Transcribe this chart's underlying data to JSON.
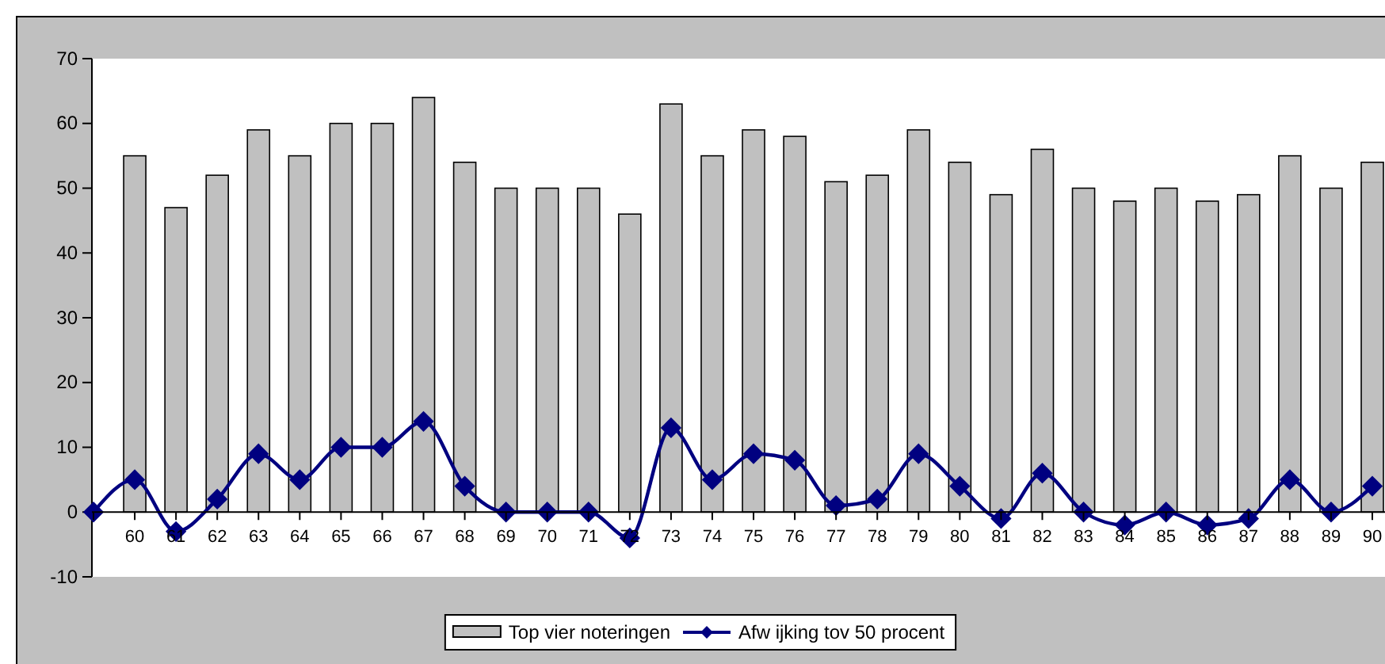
{
  "chart_data": {
    "type": "bar",
    "categories": [
      null,
      "60",
      "61",
      "62",
      "63",
      "64",
      "65",
      "66",
      "67",
      "68",
      "69",
      "70",
      "71",
      "72",
      "73",
      "74",
      "75",
      "76",
      "77",
      "78",
      "79",
      "80",
      "81",
      "82",
      "83",
      "84",
      "85",
      "86",
      "87",
      "88",
      "89",
      "90"
    ],
    "series": [
      {
        "name": "Top vier noteringen",
        "color": "#c0c0c0",
        "values": [
          null,
          55,
          47,
          52,
          59,
          55,
          60,
          60,
          64,
          54,
          50,
          50,
          50,
          46,
          63,
          55,
          59,
          58,
          51,
          52,
          59,
          54,
          49,
          56,
          50,
          48,
          50,
          48,
          49,
          55,
          50,
          54
        ]
      },
      {
        "name": "Afw ijking tov 50 procent",
        "type": "line",
        "color": "#000080",
        "marker": "diamond",
        "values": [
          0,
          5,
          -3,
          2,
          9,
          5,
          10,
          10,
          14,
          4,
          0,
          0,
          0,
          -4,
          13,
          5,
          9,
          8,
          1,
          2,
          9,
          4,
          -1,
          6,
          0,
          -2,
          0,
          -2,
          -1,
          5,
          0,
          4
        ]
      }
    ],
    "ylim": [
      -10,
      70
    ],
    "yticks": [
      -10,
      0,
      10,
      20,
      30,
      40,
      50,
      60,
      70
    ],
    "grid": false,
    "legend": "bottom"
  }
}
